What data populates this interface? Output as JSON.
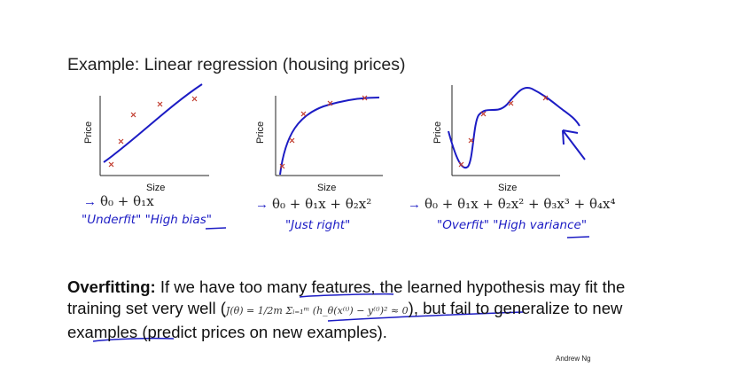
{
  "slide": {
    "title": "Example: Linear regression (housing prices)",
    "author": "Andrew Ng"
  },
  "plots": [
    {
      "ylabel": "Price",
      "xlabel": "Size",
      "hypothesis": "θ₀ + θ₁x",
      "annotation": "\"Underfit\"  \"High bias\""
    },
    {
      "ylabel": "Price",
      "xlabel": "Size",
      "hypothesis": "θ₀ + θ₁x + θ₂x²",
      "annotation": "\"Just right\""
    },
    {
      "ylabel": "Price",
      "xlabel": "Size",
      "hypothesis": "θ₀ + θ₁x + θ₂x² + θ₃x³ + θ₄x⁴",
      "annotation": "\"Overfit\"  \"High variance\""
    }
  ],
  "overfitting": {
    "label": "Overfitting:",
    "text1": " If we have too many features, the learned hypothesis may fit the training set very well (",
    "formula": "J(θ) = 1/2m Σᵢ₌₁ᵐ (h_θ(x⁽ⁱ⁾) − y⁽ⁱ⁾)² ≈ 0",
    "text2": "), but fail to generalize to new examples (predict prices on new examples)."
  },
  "colors": {
    "ink": "#1c1cc4",
    "marker": "#c0392b",
    "axis": "#222222"
  }
}
